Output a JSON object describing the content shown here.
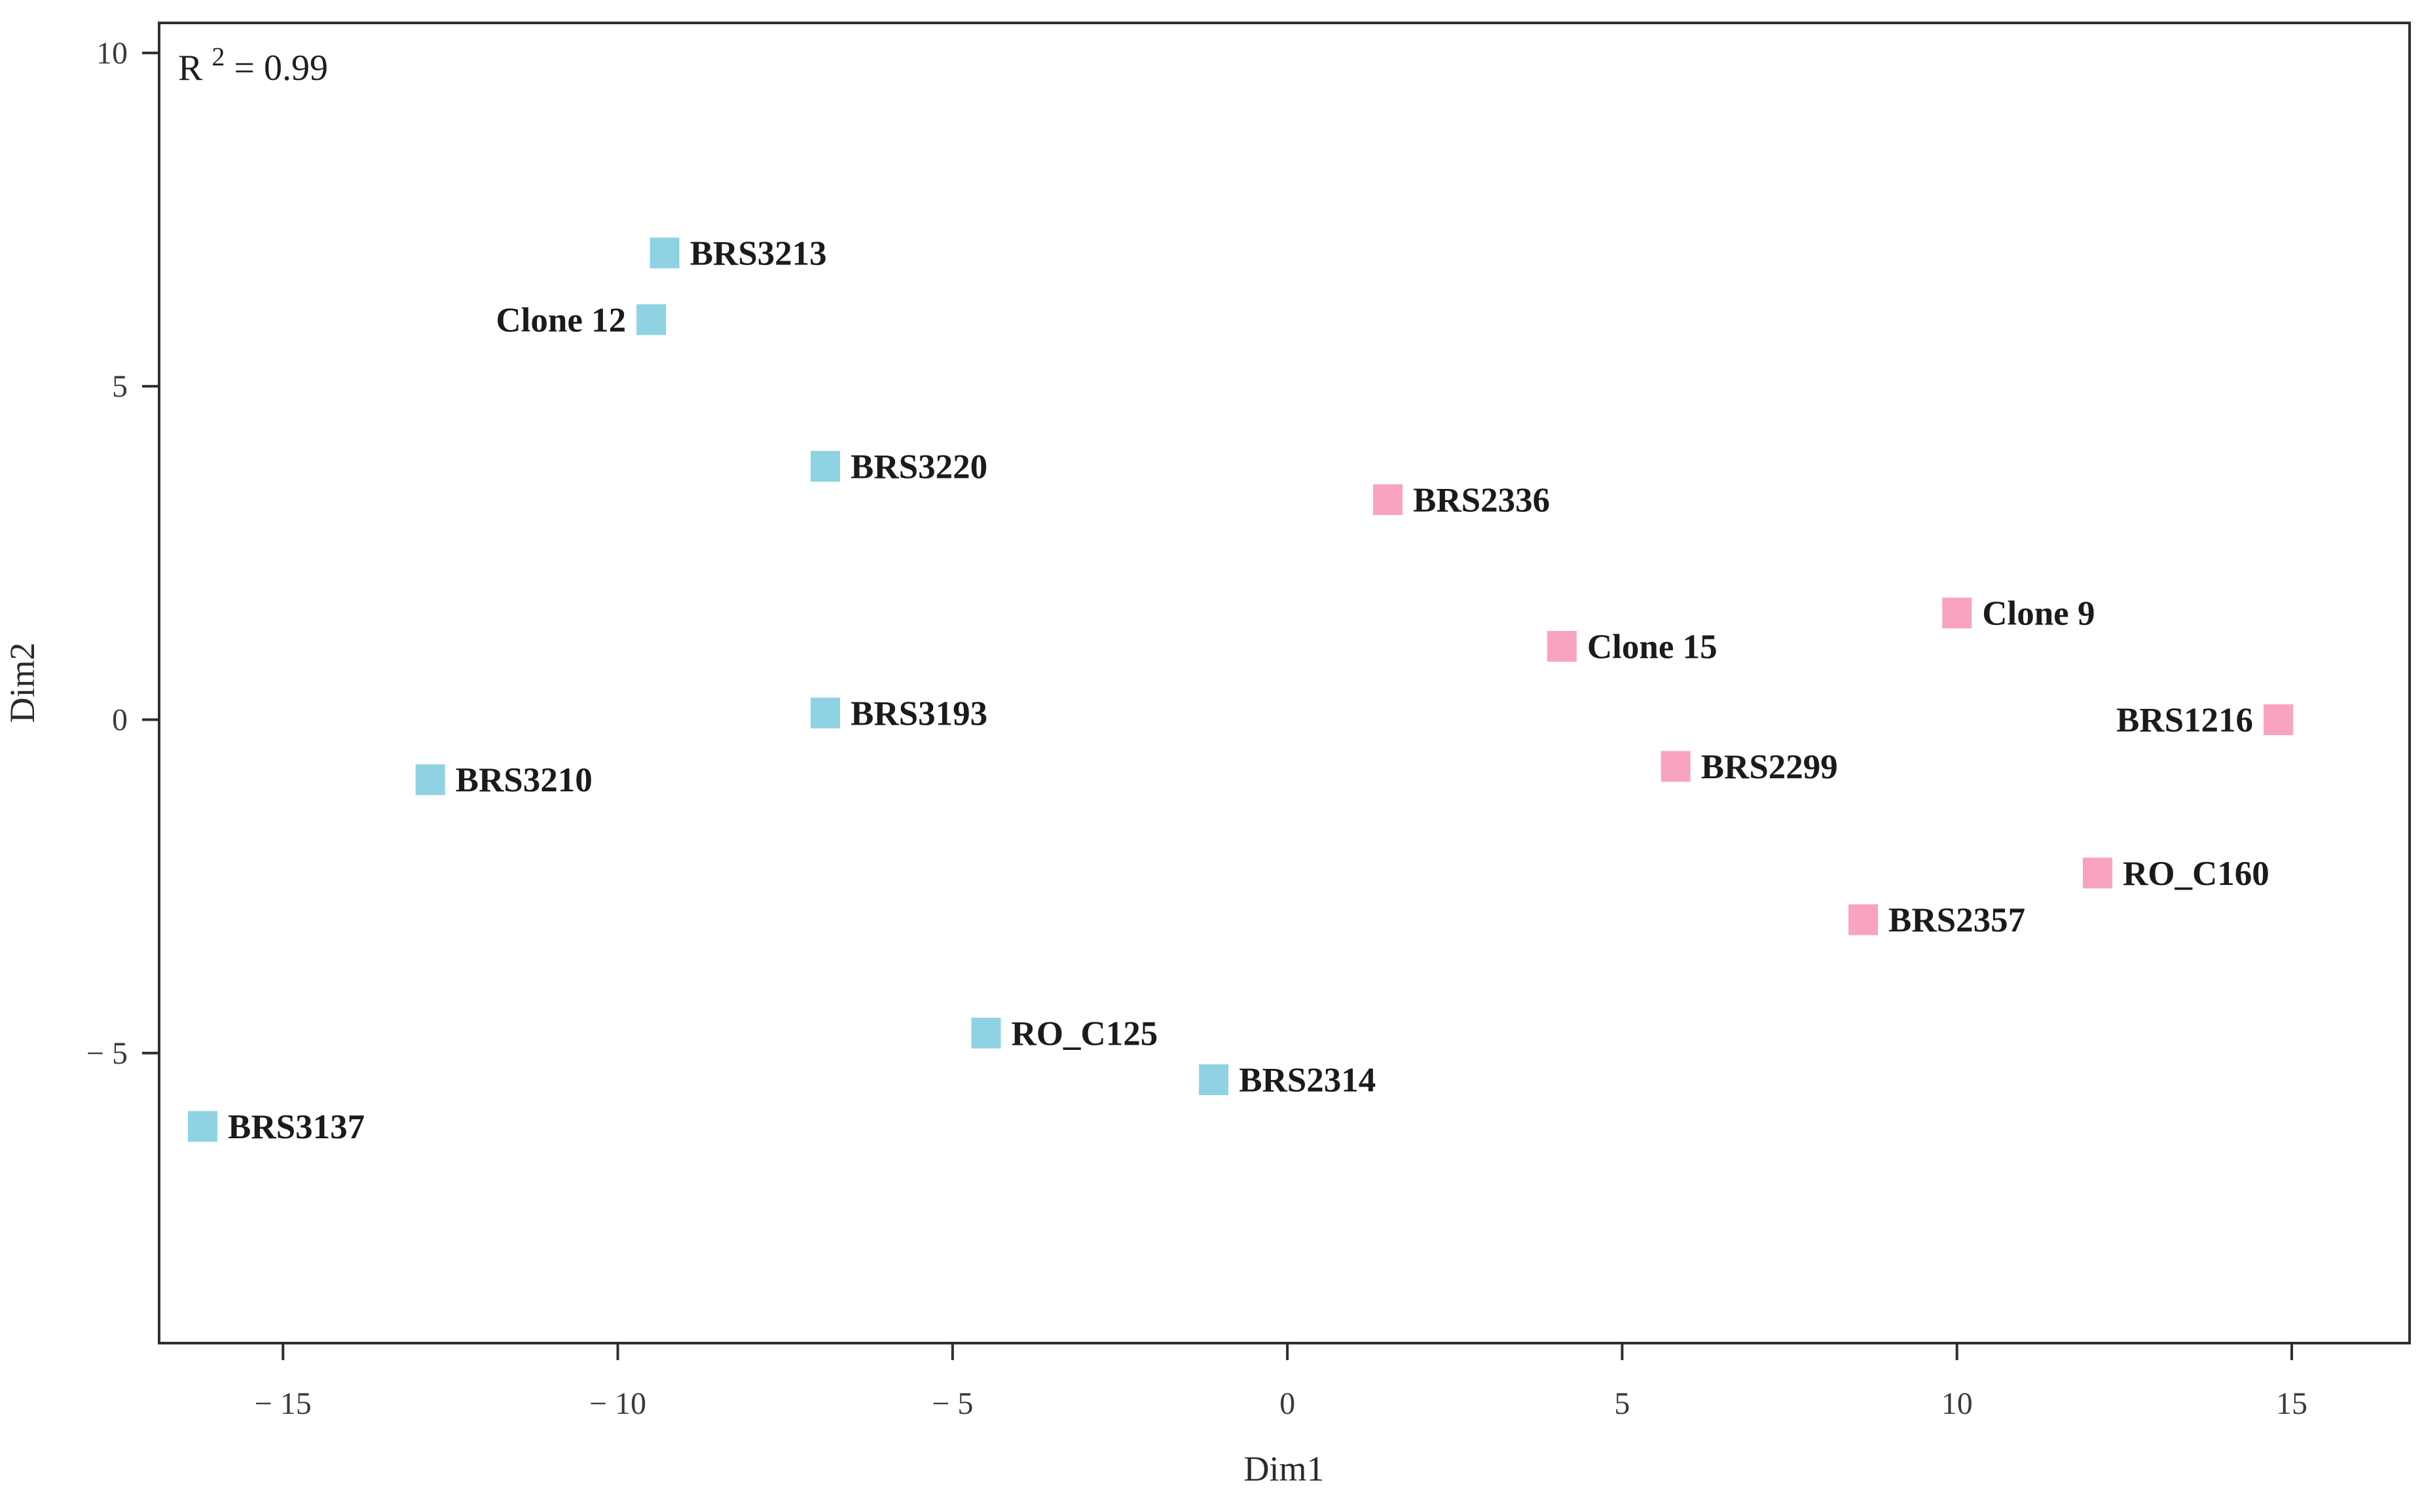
{
  "annotation": {
    "base": "R",
    "exponent": "2",
    "rest": " = 0.99",
    "display": "R² = 0.99"
  },
  "axes": {
    "x_title": "Dim1",
    "y_title": "Dim2"
  },
  "colors": {
    "blue_marker": "#8FD2E4",
    "pink_marker": "#F8A3C0",
    "axis_line": "#2f2f2f",
    "tick_text": "#3a3a3e",
    "label_text": "#1b1b1b"
  },
  "chart_data": {
    "type": "scatter",
    "title": "",
    "xlabel": "Dim1",
    "ylabel": "Dim2",
    "annotation": "R² = 0.99",
    "grid": false,
    "legend": "none",
    "marker_shape": "square",
    "xlim": [
      -16.85,
      16.76
    ],
    "ylim": [
      -9.35,
      10.45
    ],
    "x_ticks": [
      -15,
      -10,
      -5,
      0,
      5,
      10,
      15
    ],
    "y_ticks": [
      -5,
      0,
      5,
      10
    ],
    "series": [
      {
        "name": "blue-cluster",
        "color": "#8FD2E4",
        "points": [
          {
            "label": "BRS3213",
            "x": -9.3,
            "y": 7.0,
            "label_side": "right"
          },
          {
            "label": "Clone 12",
            "x": -9.5,
            "y": 6.0,
            "label_side": "left"
          },
          {
            "label": "BRS3220",
            "x": -6.9,
            "y": 3.8,
            "label_side": "right"
          },
          {
            "label": "BRS3193",
            "x": -6.9,
            "y": 0.1,
            "label_side": "right"
          },
          {
            "label": "BRS3210",
            "x": -12.8,
            "y": -0.9,
            "label_side": "right"
          },
          {
            "label": "RO_C125",
            "x": -4.5,
            "y": -4.7,
            "label_side": "right"
          },
          {
            "label": "BRS2314",
            "x": -1.1,
            "y": -5.4,
            "label_side": "right"
          },
          {
            "label": "BRS3137",
            "x": -16.2,
            "y": -6.1,
            "label_side": "right"
          }
        ]
      },
      {
        "name": "pink-cluster",
        "color": "#F8A3C0",
        "points": [
          {
            "label": "BRS2336",
            "x": 1.5,
            "y": 3.3,
            "label_side": "right"
          },
          {
            "label": "Clone 15",
            "x": 4.1,
            "y": 1.1,
            "label_side": "right"
          },
          {
            "label": "Clone 9",
            "x": 10.0,
            "y": 1.6,
            "label_side": "right"
          },
          {
            "label": "BRS1216",
            "x": 14.8,
            "y": 0.0,
            "label_side": "left"
          },
          {
            "label": "BRS2299",
            "x": 5.8,
            "y": -0.7,
            "label_side": "right"
          },
          {
            "label": "RO_C160",
            "x": 12.1,
            "y": -2.3,
            "label_side": "right"
          },
          {
            "label": "BRS2357",
            "x": 8.6,
            "y": -3.0,
            "label_side": "right"
          }
        ]
      }
    ]
  }
}
